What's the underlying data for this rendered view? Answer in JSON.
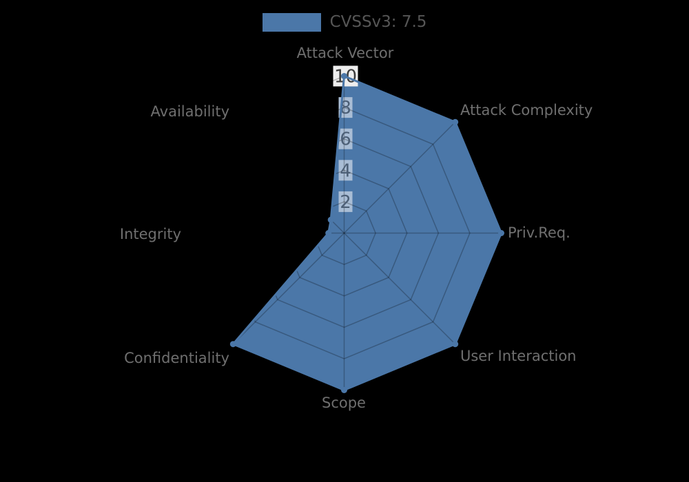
{
  "legend": {
    "label": "CVSSv3: 7.5"
  },
  "chart_data": {
    "type": "radar",
    "title": "CVSSv3: 7.5",
    "categories": [
      "Attack Vector",
      "Attack Complexity",
      "Priv.Req.",
      "User Interaction",
      "Scope",
      "Confidentiality",
      "Integrity",
      "Availability"
    ],
    "series": [
      {
        "name": "CVSSv3: 7.5",
        "values": [
          10,
          10,
          10,
          10,
          10,
          10,
          1,
          1.2
        ]
      }
    ],
    "range": [
      0,
      10
    ],
    "ticks": [
      2,
      4,
      6,
      8,
      10
    ],
    "grid": "octagonal-web",
    "legend_position": "top-center",
    "colors": {
      "fill": "#4b77a8",
      "grid_overlay": "rgba(0,0,0,0.25)",
      "axis_label": "#6f6f6f",
      "tick_box": "#a9bdd5",
      "tick_text": "#4c5f76",
      "tick_box_outer": "#eeeeee",
      "tick_text_outer": "#3d3d3d",
      "legend_text": "#565656",
      "background": "#000000"
    }
  }
}
